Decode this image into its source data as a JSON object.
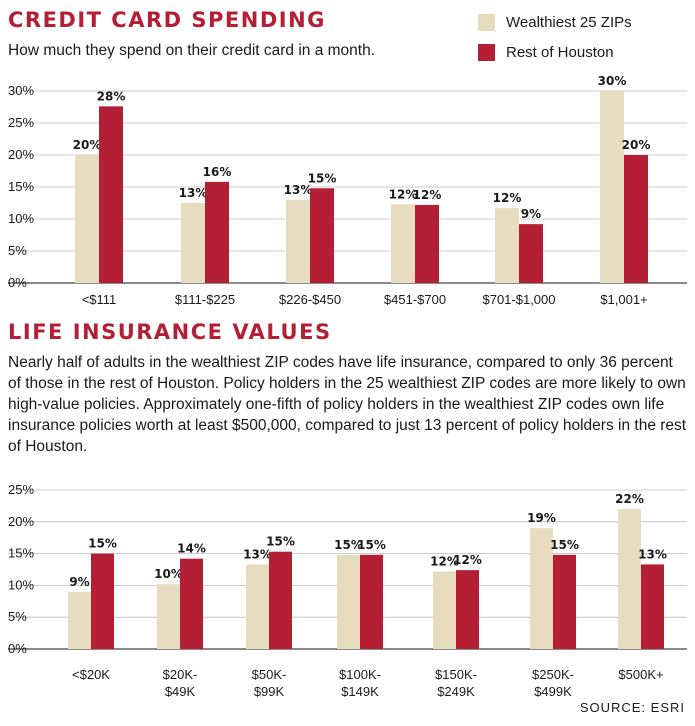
{
  "colors": {
    "accent": "#b41f35",
    "series_a": "#e8dcc0",
    "series_b": "#b41f35"
  },
  "legend": [
    {
      "name": "Wealthiest 25 ZIPs",
      "color": "#e8dcc0"
    },
    {
      "name": "Rest of Houston",
      "color": "#b41f35"
    }
  ],
  "text": {
    "body": "Nearly half of adults in the wealthiest ZIP codes have life insurance, compared to only 36 percent of those in the rest of Houston. Policy holders in the 25 wealthiest ZIP codes are more likely to own high-value policies. Approximately one-fifth of policy holders in the wealthiest ZIP codes own life insurance policies worth at least $500,000, compared to just 13 percent of policy holders in the rest of Houston.",
    "source": "SOURCE: ESRI"
  },
  "chart_data": [
    {
      "type": "bar",
      "title": "CREDIT CARD SPENDING",
      "subtitle": "How much they spend on their credit card in a month.",
      "categories": [
        "<$111",
        "$111-$225",
        "$226-$450",
        "$451-$700",
        "$701-$1,000",
        "$1,001+"
      ],
      "series": [
        {
          "name": "Wealthiest 25 ZIPs",
          "values": [
            20,
            12.5,
            13,
            12.3,
            11.7,
            30
          ],
          "labels": [
            "20%",
            "13%",
            "13%",
            "12%",
            "12%",
            "30%"
          ]
        },
        {
          "name": "Rest of Houston",
          "values": [
            27.6,
            15.8,
            14.8,
            12.2,
            9.2,
            20
          ],
          "labels": [
            "28%",
            "16%",
            "15%",
            "12%",
            "9%",
            "20%"
          ]
        }
      ],
      "ylim": [
        0,
        30
      ],
      "yticks": [
        0,
        5,
        10,
        15,
        20,
        25,
        30
      ],
      "ytick_labels": [
        "0%",
        "5%",
        "10%",
        "15%",
        "20%",
        "25%",
        "30%"
      ],
      "grid": true,
      "legend": "top-right"
    },
    {
      "type": "bar",
      "title": "LIFE INSURANCE VALUES",
      "categories": [
        [
          "<$20K"
        ],
        [
          "$20K-",
          "$49K"
        ],
        [
          "$50K-",
          "$99K"
        ],
        [
          "$100K-",
          "$149K"
        ],
        [
          "$150K-",
          "$249K"
        ],
        [
          "$250K-",
          "$499K"
        ],
        [
          "$500K+"
        ]
      ],
      "series": [
        {
          "name": "Wealthiest 25 ZIPs",
          "values": [
            9,
            10.2,
            13.3,
            14.8,
            12.2,
            19,
            22
          ],
          "labels": [
            "9%",
            "10%",
            "13%",
            "15%",
            "12%",
            "19%",
            "22%"
          ]
        },
        {
          "name": "Rest of Houston",
          "values": [
            15,
            14.2,
            15.3,
            14.8,
            12.4,
            14.8,
            13.3
          ],
          "labels": [
            "15%",
            "14%",
            "15%",
            "15%",
            "12%",
            "15%",
            "13%"
          ]
        }
      ],
      "ylim": [
        0,
        25
      ],
      "yticks": [
        0,
        5,
        10,
        15,
        20,
        25
      ],
      "ytick_labels": [
        "0%",
        "5%",
        "10%",
        "15%",
        "20%",
        "25%"
      ],
      "grid": true
    }
  ]
}
